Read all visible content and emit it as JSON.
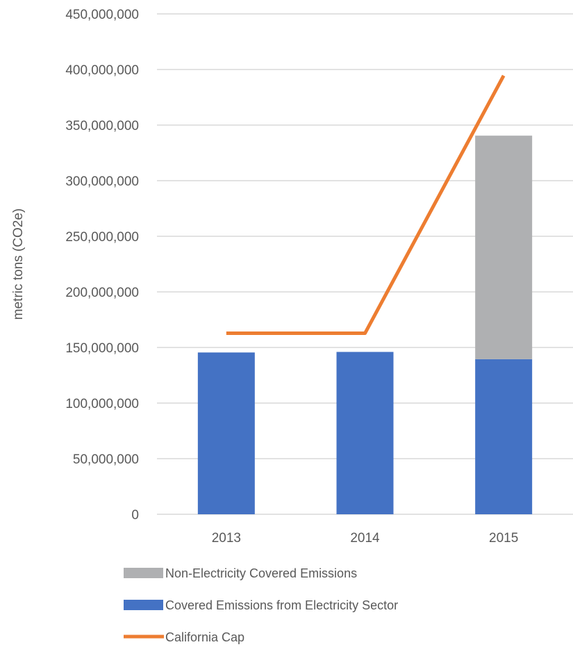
{
  "chart_data": {
    "type": "bar",
    "title": "",
    "xlabel": "",
    "ylabel": "metric tons (CO2e)",
    "ylim": [
      0,
      450000000
    ],
    "yticks": [
      0,
      50000000,
      100000000,
      150000000,
      200000000,
      250000000,
      300000000,
      350000000,
      400000000,
      450000000
    ],
    "ytick_labels": [
      "0",
      "50,000,000",
      "100,000,000",
      "150,000,000",
      "200,000,000",
      "250,000,000",
      "300,000,000",
      "350,000,000",
      "400,000,000",
      "450,000,000"
    ],
    "categories": [
      "2013",
      "2014",
      "2015"
    ],
    "stacked": true,
    "grid": true,
    "legend_position": "bottom",
    "series": [
      {
        "name": "Covered Emissions from Electricity Sector",
        "type": "bar",
        "color": "#4472c4",
        "values": [
          145500000,
          146000000,
          139500000
        ]
      },
      {
        "name": "Non-Electricity Covered Emissions",
        "type": "bar",
        "color": "#afb0b2",
        "values": [
          0,
          0,
          201000000
        ]
      },
      {
        "name": "California Cap",
        "type": "line",
        "color": "#ed7d31",
        "values": [
          162800000,
          162800000,
          394500000
        ]
      }
    ],
    "legend": [
      {
        "name": "Non-Electricity Covered Emissions",
        "marker": "box",
        "color": "#afb0b2"
      },
      {
        "name": "Covered Emissions from Electricity Sector",
        "marker": "box",
        "color": "#4472c4"
      },
      {
        "name": "California Cap",
        "marker": "line",
        "color": "#ed7d31"
      }
    ]
  }
}
